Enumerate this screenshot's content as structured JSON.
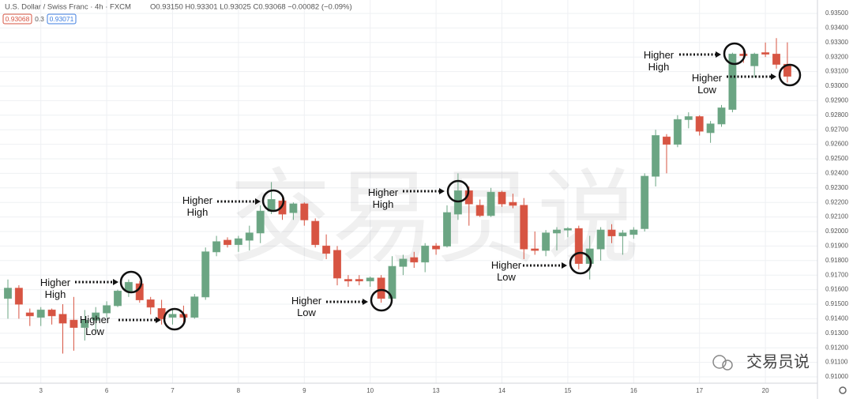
{
  "header": {
    "symbol": "U.S. Dollar / Swiss Franc · 4h · FXCM",
    "ohlc": "O0.93150 H0.93301 L0.93025 C0.93068 −0.00082 (−0.09%)",
    "bid": "0.93068",
    "spread": "0.3",
    "ask": "0.93071"
  },
  "watermark": "交易员说",
  "logo_text": "交易员说",
  "chart_data": {
    "type": "candlestick",
    "up_color": "#6ba583",
    "down_color": "#d75442",
    "grid": true,
    "categories": [
      null,
      null,
      null,
      "3",
      null,
      null,
      null,
      null,
      null,
      "6",
      null,
      null,
      null,
      null,
      null,
      "7",
      null,
      null,
      null,
      null,
      null,
      "8",
      null,
      null,
      null,
      null,
      null,
      "9",
      null,
      null,
      null,
      null,
      null,
      "10",
      null,
      null,
      null,
      null,
      null,
      "13",
      null,
      null,
      null,
      null,
      null,
      "14",
      null,
      null,
      null,
      null,
      null,
      "15",
      null,
      null,
      null,
      null,
      null,
      "16",
      null,
      null,
      null,
      null,
      null,
      "17",
      null,
      null,
      null,
      null,
      null,
      "20",
      null,
      null
    ],
    "open": [
      0.9154,
      0.9161,
      0.9144,
      0.9141,
      0.9146,
      0.9143,
      0.9139,
      0.9134,
      0.9139,
      0.9144,
      0.9149,
      0.9159,
      0.9164,
      0.9153,
      0.9147,
      0.9141,
      0.9143,
      0.9141,
      0.9155,
      0.9186,
      0.9194,
      0.9191,
      0.9194,
      0.9199,
      0.9214,
      0.9221,
      0.9213,
      0.9219,
      0.9207,
      0.919,
      0.9187,
      0.9167,
      0.9167,
      0.9166,
      0.9168,
      0.9154,
      0.9176,
      0.9182,
      0.9179,
      0.919,
      0.919,
      0.9212,
      0.9228,
      0.9218,
      0.9211,
      0.9227,
      0.922,
      0.9218,
      0.9188,
      0.9187,
      0.9199,
      0.9201,
      0.9202,
      0.9178,
      0.9188,
      0.9201,
      0.9197,
      0.9198,
      0.9202,
      0.9238,
      0.9265,
      0.926,
      0.9277,
      0.9279,
      0.9268,
      0.9274,
      0.9284,
      0.9322,
      0.9314,
      0.9323,
      0.9322,
      0.9315
    ],
    "high": [
      0.9167,
      0.9163,
      0.9147,
      0.9148,
      0.9147,
      0.915,
      0.9155,
      0.9146,
      0.9148,
      0.9152,
      0.916,
      0.9167,
      0.9166,
      0.9155,
      0.9153,
      0.9147,
      0.9149,
      0.9157,
      0.9189,
      0.9197,
      0.9196,
      0.9197,
      0.9204,
      0.9218,
      0.9234,
      0.9224,
      0.922,
      0.922,
      0.9209,
      0.9198,
      0.919,
      0.917,
      0.917,
      0.9169,
      0.917,
      0.9183,
      0.9184,
      0.9186,
      0.9192,
      0.9192,
      0.9218,
      0.924,
      0.9231,
      0.9222,
      0.923,
      0.9228,
      0.9226,
      0.9223,
      0.92,
      0.9201,
      0.9203,
      0.9203,
      0.9204,
      0.9197,
      0.9203,
      0.9205,
      0.9201,
      0.9203,
      0.924,
      0.927,
      0.9267,
      0.928,
      0.9282,
      0.928,
      0.9276,
      0.9287,
      0.9323,
      0.9325,
      0.9323,
      0.933,
      0.9333,
      0.93301
    ],
    "low": [
      0.914,
      0.914,
      0.9135,
      0.9135,
      0.9136,
      0.9116,
      0.9118,
      0.9125,
      0.913,
      0.9141,
      0.9148,
      0.9155,
      0.9151,
      0.9143,
      0.9136,
      0.9136,
      0.9136,
      0.914,
      0.9153,
      0.9183,
      0.9189,
      0.9186,
      0.9187,
      0.9192,
      0.9212,
      0.9208,
      0.9208,
      0.9204,
      0.9189,
      0.9181,
      0.9163,
      0.9162,
      0.9163,
      0.9162,
      0.9151,
      0.9152,
      0.917,
      0.9175,
      0.9172,
      0.9184,
      0.9189,
      0.9208,
      0.9204,
      0.921,
      0.921,
      0.9217,
      0.9216,
      0.9181,
      0.9184,
      0.9183,
      0.9187,
      0.9196,
      0.9174,
      0.9167,
      0.918,
      0.9192,
      0.9184,
      0.9195,
      0.92,
      0.9231,
      0.924,
      0.9258,
      0.9271,
      0.9266,
      0.9261,
      0.9272,
      0.9282,
      0.9316,
      0.9306,
      0.932,
      0.9312,
      0.93025
    ],
    "close": [
      0.9161,
      0.915,
      0.9142,
      0.9146,
      0.9142,
      0.9137,
      0.9134,
      0.9139,
      0.9144,
      0.9149,
      0.9159,
      0.9165,
      0.9153,
      0.9148,
      0.914,
      0.9143,
      0.9141,
      0.9155,
      0.9186,
      0.9193,
      0.9191,
      0.9195,
      0.9199,
      0.9214,
      0.9222,
      0.9212,
      0.9219,
      0.9208,
      0.9191,
      0.9185,
      0.9168,
      0.9166,
      0.9166,
      0.9168,
      0.9154,
      0.9176,
      0.9181,
      0.9179,
      0.919,
      0.9188,
      0.9213,
      0.9228,
      0.9219,
      0.9211,
      0.9227,
      0.9219,
      0.9218,
      0.9188,
      0.9187,
      0.9199,
      0.9201,
      0.9202,
      0.9178,
      0.9188,
      0.9201,
      0.9197,
      0.9199,
      0.9201,
      0.9238,
      0.9266,
      0.926,
      0.9277,
      0.9279,
      0.9269,
      0.9274,
      0.9285,
      0.9322,
      0.9321,
      0.9322,
      0.9322,
      0.9315,
      0.93068
    ],
    "ylim": [
      0.91,
      0.935
    ],
    "yticks": [
      {
        "value": 0.935,
        "label": "0.93500"
      },
      {
        "value": 0.934,
        "label": "0.93400"
      },
      {
        "value": 0.933,
        "label": "0.93300"
      },
      {
        "value": 0.932,
        "label": "0.93200"
      },
      {
        "value": 0.931,
        "label": "0.93100"
      },
      {
        "value": 0.93,
        "label": "0.93000"
      },
      {
        "value": 0.929,
        "label": "0.92900"
      },
      {
        "value": 0.928,
        "label": "0.92800"
      },
      {
        "value": 0.927,
        "label": "0.92700"
      },
      {
        "value": 0.926,
        "label": "0.92600"
      },
      {
        "value": 0.925,
        "label": "0.92500"
      },
      {
        "value": 0.924,
        "label": "0.92400"
      },
      {
        "value": 0.923,
        "label": "0.92300"
      },
      {
        "value": 0.922,
        "label": "0.92200"
      },
      {
        "value": 0.921,
        "label": "0.92100"
      },
      {
        "value": 0.92,
        "label": "0.92000"
      },
      {
        "value": 0.919,
        "label": "0.91900"
      },
      {
        "value": 0.918,
        "label": "0.91800"
      },
      {
        "value": 0.917,
        "label": "0.91700"
      },
      {
        "value": 0.916,
        "label": "0.91600"
      },
      {
        "value": 0.915,
        "label": "0.91500"
      },
      {
        "value": 0.914,
        "label": "0.91400"
      },
      {
        "value": 0.913,
        "label": "0.91300"
      },
      {
        "value": 0.912,
        "label": "0.91200"
      },
      {
        "value": 0.911,
        "label": "0.91100"
      },
      {
        "value": 0.91,
        "label": "0.91000"
      }
    ],
    "annotations": [
      "Higher High",
      "Higher Low",
      "Higher High",
      "Higher Low",
      "Higher High",
      "Higher Low",
      "Higher High",
      "Higher Low"
    ]
  }
}
